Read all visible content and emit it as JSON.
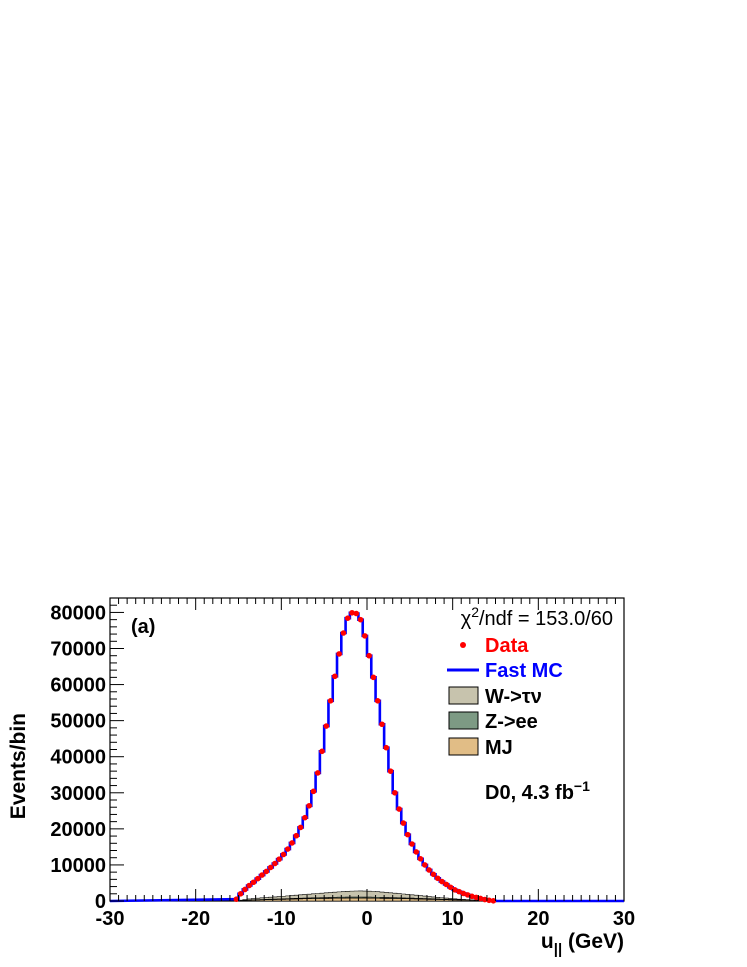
{
  "chart_data": {
    "type": "line",
    "panel_label": "(a)",
    "xlabel": {
      "main": "u",
      "sub": "||",
      "unit": " (GeV)"
    },
    "ylabel": "Events/bin",
    "xlim": [
      -30,
      30
    ],
    "ylim": [
      0,
      84000
    ],
    "x_ticks": [
      -30,
      -20,
      -10,
      0,
      10,
      20,
      30
    ],
    "y_ticks": [
      0,
      10000,
      20000,
      30000,
      40000,
      50000,
      60000,
      70000,
      80000
    ],
    "annotations": {
      "chi2": {
        "main": "χ",
        "sup": "2",
        "rest": "/ndf = 153.0/60"
      },
      "experiment": {
        "main": "D0, 4.3 fb",
        "sup": "−1"
      }
    },
    "legend_position": "top-right",
    "legend": [
      {
        "label": "Data",
        "style": "marker",
        "color": "#ff0000"
      },
      {
        "label": "Fast MC",
        "style": "line",
        "color": "#0000ff"
      },
      {
        "label": "W->τν",
        "style": "fill",
        "color": "#c7c3ad"
      },
      {
        "label": "Z->ee",
        "style": "fill",
        "color": "#7d9a84"
      },
      {
        "label": "MJ",
        "style": "fill",
        "color": "#e1bd86"
      }
    ],
    "bin_width": 0.5,
    "bin_centers": [
      -15.25,
      -14.75,
      -14.25,
      -13.75,
      -13.25,
      -12.75,
      -12.25,
      -11.75,
      -11.25,
      -10.75,
      -10.25,
      -9.75,
      -9.25,
      -8.75,
      -8.25,
      -7.75,
      -7.25,
      -6.75,
      -6.25,
      -5.75,
      -5.25,
      -4.75,
      -4.25,
      -3.75,
      -3.25,
      -2.75,
      -2.25,
      -1.75,
      -1.25,
      -0.75,
      -0.25,
      0.25,
      0.75,
      1.25,
      1.75,
      2.25,
      2.75,
      3.25,
      3.75,
      4.25,
      4.75,
      5.25,
      5.75,
      6.25,
      6.75,
      7.25,
      7.75,
      8.25,
      8.75,
      9.25,
      9.75,
      10.25,
      10.75,
      11.25,
      11.75,
      12.25,
      12.75,
      13.25,
      13.75,
      14.25,
      14.75
    ],
    "series": [
      {
        "name": "Data",
        "color": "#ff0000",
        "values": [
          500,
          2000,
          3200,
          4300,
          5200,
          6200,
          7200,
          8200,
          9300,
          10400,
          11600,
          12900,
          14400,
          16100,
          18100,
          20400,
          23100,
          26400,
          30400,
          35500,
          41500,
          48500,
          55500,
          62300,
          68500,
          74300,
          78400,
          79900,
          79700,
          78000,
          73500,
          68000,
          62000,
          55500,
          49000,
          42500,
          36000,
          30000,
          25500,
          21600,
          18400,
          15800,
          13600,
          11700,
          10000,
          8600,
          7400,
          6300,
          5400,
          4600,
          3800,
          3100,
          2600,
          2100,
          1700,
          1300,
          1000,
          700,
          400,
          200,
          50
        ]
      },
      {
        "name": "Fast MC",
        "color": "#0000ff",
        "values": [
          500,
          2000,
          3200,
          4300,
          5200,
          6200,
          7200,
          8200,
          9300,
          10400,
          11600,
          12900,
          14400,
          16100,
          18100,
          20400,
          23100,
          26400,
          30400,
          35500,
          41500,
          48500,
          55500,
          62300,
          68500,
          74300,
          78400,
          79900,
          79700,
          78000,
          73500,
          68000,
          62000,
          55500,
          49000,
          42500,
          36000,
          30000,
          25500,
          21600,
          18400,
          15800,
          13600,
          11700,
          10000,
          8600,
          7400,
          6300,
          5400,
          4600,
          3800,
          3100,
          2600,
          2100,
          1700,
          1300,
          1000,
          700,
          400,
          200,
          50
        ]
      },
      {
        "name": "W->τν",
        "color": "#c7c3ad",
        "values": [
          30,
          100,
          200,
          300,
          350,
          400,
          450,
          500,
          550,
          600,
          650,
          700,
          760,
          820,
          880,
          940,
          1000,
          1060,
          1120,
          1180,
          1240,
          1300,
          1360,
          1420,
          1480,
          1540,
          1590,
          1630,
          1660,
          1670,
          1660,
          1640,
          1600,
          1540,
          1470,
          1400,
          1320,
          1240,
          1160,
          1080,
          1000,
          920,
          840,
          760,
          680,
          600,
          520,
          440,
          380,
          320,
          260,
          200,
          160,
          120,
          90,
          60,
          40,
          30,
          20,
          10,
          5
        ]
      },
      {
        "name": "Z->ee",
        "color": "#7d9a84",
        "values": [
          5,
          20,
          40,
          60,
          70,
          80,
          90,
          100,
          110,
          120,
          130,
          140,
          150,
          160,
          170,
          180,
          190,
          200,
          210,
          220,
          230,
          240,
          250,
          260,
          270,
          280,
          290,
          300,
          300,
          300,
          300,
          300,
          290,
          280,
          270,
          260,
          250,
          240,
          230,
          220,
          210,
          200,
          190,
          180,
          170,
          160,
          150,
          140,
          130,
          120,
          110,
          100,
          90,
          80,
          70,
          60,
          50,
          40,
          30,
          20,
          5
        ]
      },
      {
        "name": "MJ",
        "color": "#e1bd86",
        "values": [
          50,
          100,
          150,
          200,
          250,
          300,
          330,
          360,
          390,
          420,
          450,
          480,
          510,
          540,
          570,
          600,
          620,
          640,
          660,
          680,
          700,
          720,
          740,
          760,
          780,
          790,
          800,
          810,
          810,
          810,
          800,
          790,
          780,
          760,
          740,
          720,
          700,
          680,
          660,
          640,
          620,
          600,
          570,
          540,
          510,
          480,
          450,
          420,
          390,
          360,
          330,
          300,
          270,
          240,
          210,
          180,
          150,
          120,
          90,
          60,
          20
        ]
      }
    ]
  }
}
